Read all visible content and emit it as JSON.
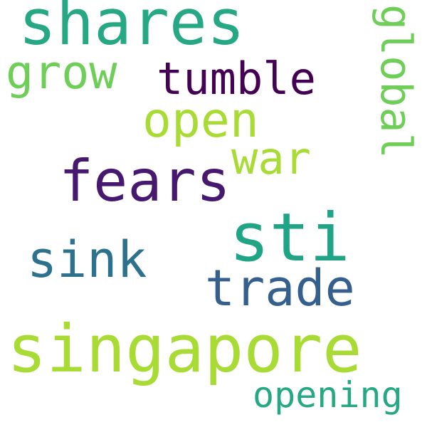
{
  "words": {
    "shares": {
      "text": "shares",
      "color": "#26a884"
    },
    "global": {
      "text": "global",
      "color": "#6ece58"
    },
    "grow": {
      "text": "grow",
      "color": "#6ece58"
    },
    "tumble": {
      "text": "tumble",
      "color": "#440154"
    },
    "open": {
      "text": "open",
      "color": "#a8db34"
    },
    "war": {
      "text": "war",
      "color": "#a8db34"
    },
    "fears": {
      "text": "fears",
      "color": "#46186f"
    },
    "sti": {
      "text": "sti",
      "color": "#20a486"
    },
    "sink": {
      "text": "sink",
      "color": "#2c728e"
    },
    "trade": {
      "text": "trade",
      "color": "#355f8d"
    },
    "singapore": {
      "text": "singapore",
      "color": "#a8db34"
    },
    "opening": {
      "text": "opening",
      "color": "#26a884"
    }
  }
}
